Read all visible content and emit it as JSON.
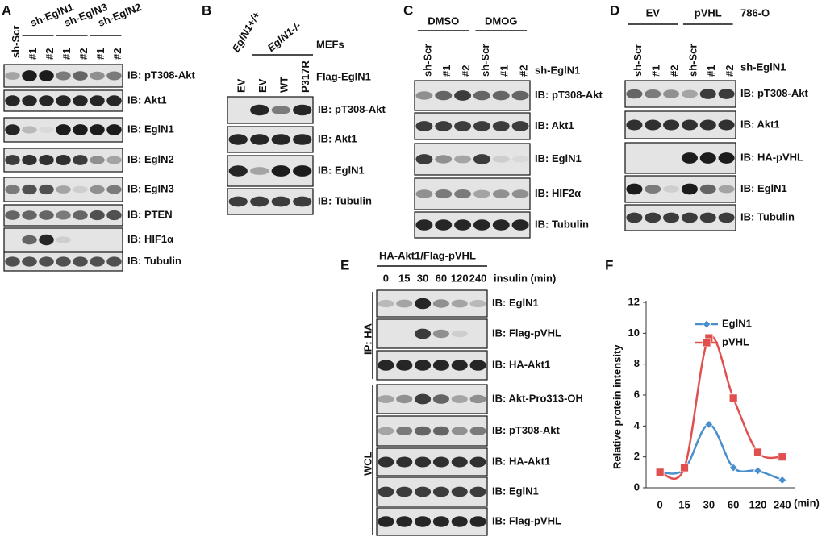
{
  "panels": {
    "A": {
      "label": "A",
      "lanes": [
        "sh-Scr",
        "#1",
        "#2",
        "#1",
        "#2",
        "#1",
        "#2"
      ],
      "groups": [
        "sh-EglN1",
        "sh-EglN3",
        "sh-EglN2"
      ],
      "blots": [
        "IB: pT308-Akt",
        "IB: Akt1",
        "IB: EglN1",
        "IB: EglN2",
        "IB: EglN3",
        "IB: PTEN",
        "IB: HIF1α",
        "IB: Tubulin"
      ]
    },
    "B": {
      "label": "B",
      "genotypes": [
        "EglN1+/+",
        "EglN1-/-"
      ],
      "cell": "MEFs",
      "lanes": [
        "EV",
        "EV",
        "WT",
        "P317R"
      ],
      "lane_title": "Flag-EglN1",
      "blots": [
        "IB: pT308-Akt",
        "IB: Akt1",
        "IB: EglN1",
        "IB: Tubulin"
      ]
    },
    "C": {
      "label": "C",
      "groups": [
        "DMSO",
        "DMOG"
      ],
      "lanes": [
        "sh-Scr",
        "#1",
        "#2",
        "sh-Scr",
        "#1",
        "#2"
      ],
      "lane_title": "sh-EglN1",
      "blots": [
        "IB: pT308-Akt",
        "IB: Akt1",
        "IB: EglN1",
        "IB: HIF2α",
        "IB: Tubulin"
      ]
    },
    "D": {
      "label": "D",
      "groups": [
        "EV",
        "pVHL"
      ],
      "cell": "786-O",
      "lanes": [
        "sh-Scr",
        "#1",
        "#2",
        "sh-Scr",
        "#1",
        "#2"
      ],
      "lane_title": "sh-EglN1",
      "blots": [
        "IB: pT308-Akt",
        "IB: Akt1",
        "IB: HA-pVHL",
        "IB: EglN1",
        "IB: Tubulin"
      ]
    },
    "E": {
      "label": "E",
      "title": "HA-Akt1/Flag-pVHL",
      "lanes": [
        "0",
        "15",
        "30",
        "60",
        "120",
        "240"
      ],
      "lane_title": "insulin (min)",
      "ip": "IP: HA",
      "wcl": "WCL",
      "blots": [
        "IB: EglN1",
        "IB: Flag-pVHL",
        "IB: HA-Akt1",
        "IB: Akt-Pro313-OH",
        "IB: pT308-Akt",
        "IB: HA-Akt1",
        "IB: EglN1",
        "IB: Flag-pVHL"
      ]
    }
  },
  "chart_data": {
    "type": "line",
    "panel_label": "F",
    "y_label": "Relative protein intensity",
    "x_label": "(min)",
    "categories": [
      "0",
      "15",
      "30",
      "60",
      "120",
      "240"
    ],
    "series": [
      {
        "name": "EglN1",
        "color": "#4a8fcc",
        "marker": "diamond",
        "values": [
          1.0,
          1.2,
          4.1,
          1.3,
          1.1,
          0.5
        ]
      },
      {
        "name": "pVHL",
        "color": "#e0504f",
        "marker": "square",
        "values": [
          1.0,
          1.3,
          9.7,
          5.8,
          2.3,
          2.0
        ]
      }
    ],
    "ylim": [
      0,
      12
    ],
    "yticks": [
      0,
      2,
      4,
      6,
      8,
      10,
      12
    ],
    "grid": false
  }
}
